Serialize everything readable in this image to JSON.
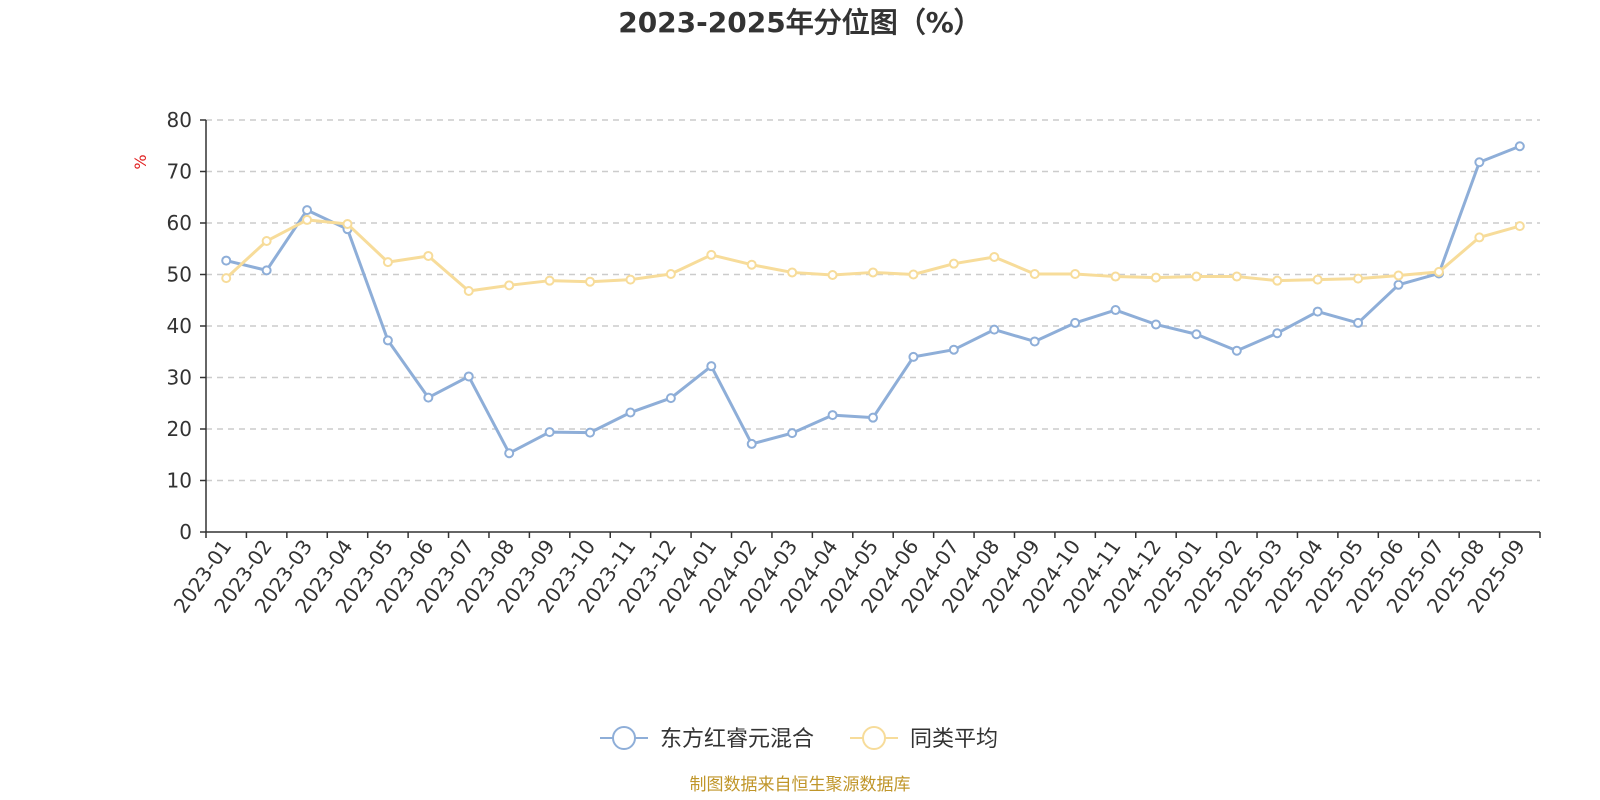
{
  "chart_data": {
    "type": "line",
    "title": "2023-2025年分位图（%）",
    "ylabel": "%",
    "ylim": [
      0,
      80
    ],
    "yticks": [
      0,
      10,
      20,
      30,
      40,
      50,
      60,
      70,
      80
    ],
    "grid": true,
    "legend_position": "bottom",
    "categories": [
      "2023-01",
      "2023-02",
      "2023-03",
      "2023-04",
      "2023-05",
      "2023-06",
      "2023-07",
      "2023-08",
      "2023-09",
      "2023-10",
      "2023-11",
      "2023-12",
      "2024-01",
      "2024-02",
      "2024-03",
      "2024-04",
      "2024-05",
      "2024-06",
      "2024-07",
      "2024-08",
      "2024-09",
      "2024-10",
      "2024-11",
      "2024-12",
      "2025-01",
      "2025-02",
      "2025-03",
      "2025-04",
      "2025-05",
      "2025-06",
      "2025-07",
      "2025-08",
      "2025-09"
    ],
    "series": [
      {
        "name": "东方红睿元混合",
        "color": "#8eaed8",
        "values": [
          52.7,
          50.8,
          62.5,
          58.8,
          37.2,
          26.1,
          30.2,
          15.3,
          19.4,
          19.3,
          23.2,
          26.0,
          32.2,
          17.1,
          19.2,
          22.7,
          22.2,
          34.0,
          35.4,
          39.3,
          37.0,
          40.6,
          43.1,
          40.3,
          38.4,
          35.2,
          38.6,
          42.8,
          40.6,
          48.0,
          50.2,
          71.8,
          74.9
        ]
      },
      {
        "name": "同类平均",
        "color": "#f7dc9a",
        "values": [
          49.3,
          56.5,
          60.6,
          59.8,
          52.4,
          53.6,
          46.8,
          47.9,
          48.8,
          48.6,
          49.0,
          50.1,
          53.8,
          51.9,
          50.4,
          49.9,
          50.4,
          50.0,
          52.1,
          53.4,
          50.1,
          50.1,
          49.6,
          49.4,
          49.6,
          49.6,
          48.8,
          49.0,
          49.2,
          49.8,
          50.5,
          57.2,
          59.4
        ]
      }
    ],
    "source_note": "制图数据来自恒生聚源数据库"
  }
}
